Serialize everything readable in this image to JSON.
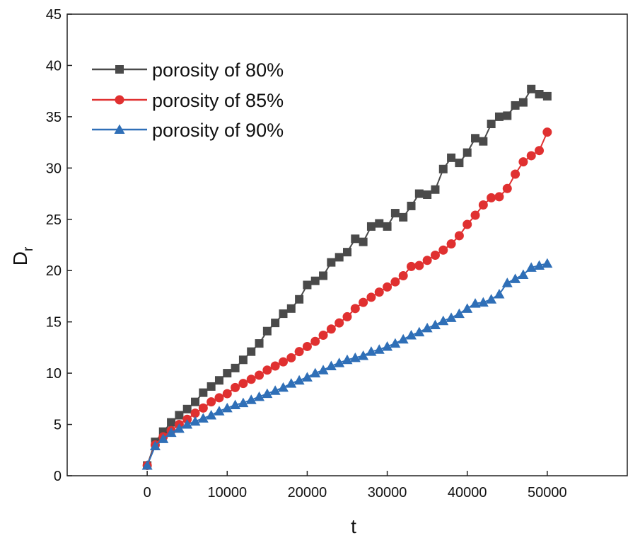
{
  "chart_data": {
    "type": "line",
    "title": "",
    "xlabel": "t",
    "ylabel": "D",
    "ylabel_subscript": "r",
    "xlim": [
      -10000,
      60000
    ],
    "ylim": [
      0,
      45
    ],
    "xticks": [
      0,
      10000,
      20000,
      30000,
      40000,
      50000
    ],
    "xtick_labels": [
      "0",
      "10000",
      "20000",
      "30000",
      "40000",
      "50000"
    ],
    "yticks": [
      0,
      5,
      10,
      15,
      20,
      25,
      30,
      35,
      40,
      45
    ],
    "ytick_labels": [
      "0",
      "5",
      "10",
      "15",
      "20",
      "25",
      "30",
      "35",
      "40",
      "45"
    ],
    "legend_position": "top-left",
    "series": [
      {
        "name": "porosity of 80%",
        "color": "#4a4a4a",
        "marker": "square",
        "x": [
          0,
          1000,
          2000,
          3000,
          4000,
          5000,
          6000,
          7000,
          8000,
          9000,
          10000,
          11000,
          12000,
          13000,
          14000,
          15000,
          16000,
          17000,
          18000,
          19000,
          20000,
          21000,
          22000,
          23000,
          24000,
          25000,
          26000,
          27000,
          28000,
          29000,
          30000,
          31000,
          32000,
          33000,
          34000,
          35000,
          36000,
          37000,
          38000,
          39000,
          40000,
          41000,
          42000,
          43000,
          44000,
          45000,
          46000,
          47000,
          48000,
          49000,
          50000
        ],
        "values": [
          1.0,
          3.3,
          4.3,
          5.2,
          5.9,
          6.5,
          7.2,
          8.1,
          8.7,
          9.3,
          10.0,
          10.5,
          11.3,
          12.1,
          12.9,
          14.1,
          14.9,
          15.8,
          16.3,
          17.2,
          18.6,
          19.0,
          19.5,
          20.8,
          21.3,
          21.8,
          23.1,
          22.8,
          24.3,
          24.6,
          24.3,
          25.6,
          25.2,
          26.3,
          27.5,
          27.4,
          27.9,
          29.9,
          31.0,
          30.5,
          31.5,
          32.9,
          32.6,
          34.3,
          35.0,
          35.1,
          36.1,
          36.4,
          37.7,
          37.2,
          37.0
        ]
      },
      {
        "name": "porosity of 85%",
        "color": "#e03030",
        "marker": "circle",
        "x": [
          0,
          1000,
          2000,
          3000,
          4000,
          5000,
          6000,
          7000,
          8000,
          9000,
          10000,
          11000,
          12000,
          13000,
          14000,
          15000,
          16000,
          17000,
          18000,
          19000,
          20000,
          21000,
          22000,
          23000,
          24000,
          25000,
          26000,
          27000,
          28000,
          29000,
          30000,
          31000,
          32000,
          33000,
          34000,
          35000,
          36000,
          37000,
          38000,
          39000,
          40000,
          41000,
          42000,
          43000,
          44000,
          45000,
          46000,
          47000,
          48000,
          49000,
          50000
        ],
        "values": [
          1.0,
          3.0,
          3.8,
          4.4,
          5.0,
          5.5,
          6.1,
          6.6,
          7.2,
          7.6,
          8.0,
          8.6,
          9.0,
          9.4,
          9.8,
          10.3,
          10.7,
          11.1,
          11.5,
          12.1,
          12.6,
          13.1,
          13.7,
          14.3,
          14.9,
          15.5,
          16.3,
          16.9,
          17.4,
          17.9,
          18.4,
          18.9,
          19.5,
          20.4,
          20.5,
          21.0,
          21.5,
          22.0,
          22.6,
          23.4,
          24.5,
          25.4,
          26.4,
          27.1,
          27.2,
          28.0,
          29.4,
          30.6,
          31.2,
          31.7,
          33.5
        ]
      },
      {
        "name": "porosity of 90%",
        "color": "#2f6fb7",
        "marker": "triangle",
        "x": [
          0,
          1000,
          2000,
          3000,
          4000,
          5000,
          6000,
          7000,
          8000,
          9000,
          10000,
          11000,
          12000,
          13000,
          14000,
          15000,
          16000,
          17000,
          18000,
          19000,
          20000,
          21000,
          22000,
          23000,
          24000,
          25000,
          26000,
          27000,
          28000,
          29000,
          30000,
          31000,
          32000,
          33000,
          34000,
          35000,
          36000,
          37000,
          38000,
          39000,
          40000,
          41000,
          42000,
          43000,
          44000,
          45000,
          46000,
          47000,
          48000,
          49000,
          50000
        ],
        "values": [
          1.0,
          2.9,
          3.6,
          4.2,
          4.6,
          5.0,
          5.3,
          5.6,
          5.9,
          6.3,
          6.6,
          6.9,
          7.1,
          7.4,
          7.7,
          8.0,
          8.3,
          8.6,
          9.0,
          9.3,
          9.6,
          10.0,
          10.3,
          10.7,
          11.0,
          11.3,
          11.5,
          11.7,
          12.1,
          12.3,
          12.6,
          12.9,
          13.3,
          13.7,
          14.0,
          14.4,
          14.7,
          15.1,
          15.4,
          15.8,
          16.3,
          16.8,
          16.9,
          17.2,
          17.7,
          18.8,
          19.2,
          19.6,
          20.3,
          20.5,
          20.7
        ]
      }
    ]
  }
}
